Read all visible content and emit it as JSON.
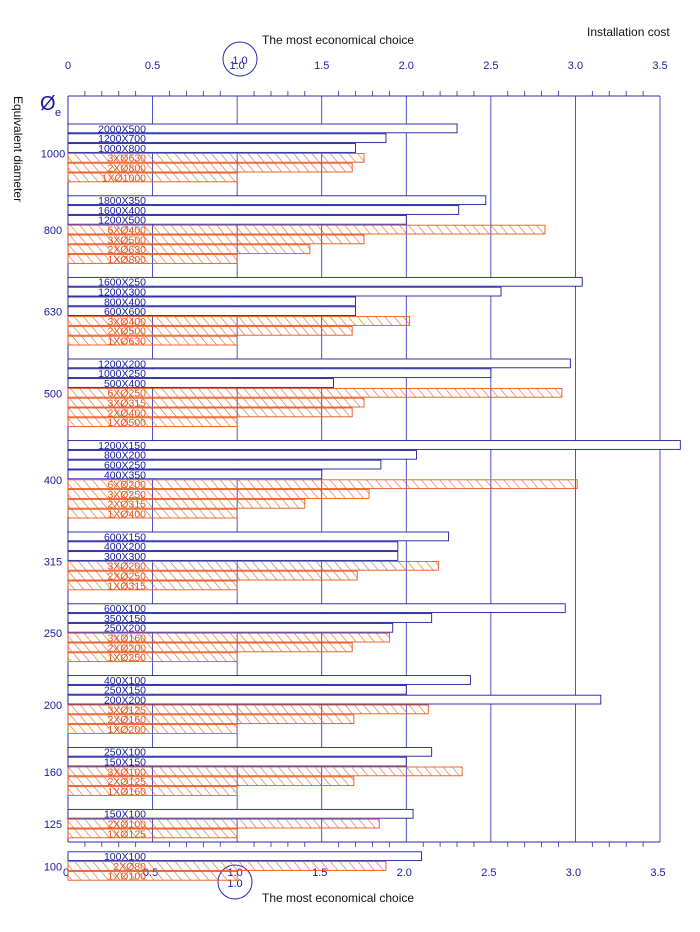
{
  "chart_data": {
    "type": "bar",
    "orientation": "horizontal",
    "title_top": "The most economical choice",
    "title_bottom": "The most economical choice",
    "xlabel": "Installation cost",
    "ylabel": "Equivalent diameter",
    "y_symbol": "Ø",
    "y_symbol_sub": "e",
    "marker_label": "1.0",
    "marker_value": 1.0,
    "xlim": [
      0,
      3.5
    ],
    "x_ticks": [
      "0",
      "0.5",
      "1.0",
      "1.5",
      "2.0",
      "2.5",
      "3.0",
      "3.5"
    ],
    "grid": true,
    "colors": {
      "rectangular": "#1a1aa0",
      "circular": "#e8541a",
      "axis": "#2a2ab0",
      "text": "#111111"
    },
    "series_styles": {
      "rect": "open bar",
      "circ": "hatched bar"
    },
    "groups": [
      {
        "diameter": "1000",
        "bars": [
          {
            "label": "2000X500",
            "value": 2.3,
            "kind": "rect"
          },
          {
            "label": "1200X700",
            "value": 1.88,
            "kind": "rect"
          },
          {
            "label": "1000X800",
            "value": 1.7,
            "kind": "rect"
          },
          {
            "label": "3XØ630",
            "value": 1.75,
            "kind": "circ"
          },
          {
            "label": "2XØ800",
            "value": 1.68,
            "kind": "circ"
          },
          {
            "label": "1XØ1000",
            "value": 1.0,
            "kind": "circ"
          }
        ]
      },
      {
        "diameter": "800",
        "bars": [
          {
            "label": "1800X350",
            "value": 2.47,
            "kind": "rect"
          },
          {
            "label": "1600X400",
            "value": 2.31,
            "kind": "rect"
          },
          {
            "label": "1200X500",
            "value": 2.0,
            "kind": "rect"
          },
          {
            "label": "6XØ400",
            "value": 2.82,
            "kind": "circ"
          },
          {
            "label": "3XØ500",
            "value": 1.75,
            "kind": "circ"
          },
          {
            "label": "2XØ630",
            "value": 1.43,
            "kind": "circ"
          },
          {
            "label": "1XØ800",
            "value": 1.0,
            "kind": "circ"
          }
        ]
      },
      {
        "diameter": "630",
        "bars": [
          {
            "label": "1600X250",
            "value": 3.04,
            "kind": "rect"
          },
          {
            "label": "1200X300",
            "value": 2.56,
            "kind": "rect"
          },
          {
            "label": "800X400",
            "value": 1.7,
            "kind": "rect"
          },
          {
            "label": "600X600",
            "value": 1.7,
            "kind": "rect"
          },
          {
            "label": "3XØ400",
            "value": 2.02,
            "kind": "circ"
          },
          {
            "label": "2XØ500",
            "value": 1.68,
            "kind": "circ"
          },
          {
            "label": "1XØ630",
            "value": 1.0,
            "kind": "circ"
          }
        ]
      },
      {
        "diameter": "500",
        "bars": [
          {
            "label": "1200X200",
            "value": 2.97,
            "kind": "rect"
          },
          {
            "label": "1000X250",
            "value": 2.5,
            "kind": "rect"
          },
          {
            "label": "500X400",
            "value": 1.57,
            "kind": "rect"
          },
          {
            "label": "6XØ250",
            "value": 2.92,
            "kind": "circ"
          },
          {
            "label": "3XØ315",
            "value": 1.75,
            "kind": "circ"
          },
          {
            "label": "2XØ400",
            "value": 1.68,
            "kind": "circ"
          },
          {
            "label": "1XØ500",
            "value": 1.0,
            "kind": "circ"
          }
        ]
      },
      {
        "diameter": "400",
        "bars": [
          {
            "label": "1200X150",
            "value": 3.62,
            "kind": "rect"
          },
          {
            "label": "800X200",
            "value": 2.06,
            "kind": "rect"
          },
          {
            "label": "600X250",
            "value": 1.85,
            "kind": "rect"
          },
          {
            "label": "400X350",
            "value": 1.5,
            "kind": "rect"
          },
          {
            "label": "6XØ200",
            "value": 3.01,
            "kind": "circ"
          },
          {
            "label": "3XØ250",
            "value": 1.78,
            "kind": "circ"
          },
          {
            "label": "2XØ315",
            "value": 1.4,
            "kind": "circ"
          },
          {
            "label": "1XØ400",
            "value": 1.0,
            "kind": "circ"
          }
        ]
      },
      {
        "diameter": "315",
        "bars": [
          {
            "label": "600X150",
            "value": 2.25,
            "kind": "rect"
          },
          {
            "label": "400X200",
            "value": 1.95,
            "kind": "rect"
          },
          {
            "label": "300X300",
            "value": 1.95,
            "kind": "rect"
          },
          {
            "label": "3XØ200",
            "value": 2.19,
            "kind": "circ"
          },
          {
            "label": "2XØ250",
            "value": 1.71,
            "kind": "circ"
          },
          {
            "label": "1XØ315",
            "value": 1.0,
            "kind": "circ"
          }
        ]
      },
      {
        "diameter": "250",
        "bars": [
          {
            "label": "600X100",
            "value": 2.94,
            "kind": "rect"
          },
          {
            "label": "350X150",
            "value": 2.15,
            "kind": "rect"
          },
          {
            "label": "250X200",
            "value": 1.92,
            "kind": "rect"
          },
          {
            "label": "3XØ160",
            "value": 1.9,
            "kind": "circ"
          },
          {
            "label": "2XØ200",
            "value": 1.68,
            "kind": "circ"
          },
          {
            "label": "1XØ250",
            "value": 1.0,
            "kind": "circ"
          }
        ]
      },
      {
        "diameter": "200",
        "bars": [
          {
            "label": "400X100",
            "value": 2.38,
            "kind": "rect"
          },
          {
            "label": "250X150",
            "value": 2.0,
            "kind": "rect"
          },
          {
            "label": "200X200",
            "value": 3.15,
            "kind": "rect"
          },
          {
            "label": "3XØ125",
            "value": 2.13,
            "kind": "circ"
          },
          {
            "label": "2XØ160",
            "value": 1.69,
            "kind": "circ"
          },
          {
            "label": "1XØ200",
            "value": 1.0,
            "kind": "circ"
          }
        ]
      },
      {
        "diameter": "160",
        "bars": [
          {
            "label": "250X100",
            "value": 2.15,
            "kind": "rect"
          },
          {
            "label": "150X150",
            "value": 2.0,
            "kind": "rect"
          },
          {
            "label": "3XØ100",
            "value": 2.33,
            "kind": "circ"
          },
          {
            "label": "2XØ125",
            "value": 1.69,
            "kind": "circ"
          },
          {
            "label": "1XØ160",
            "value": 1.0,
            "kind": "circ"
          }
        ]
      },
      {
        "diameter": "125",
        "bars": [
          {
            "label": "150X100",
            "value": 2.04,
            "kind": "rect"
          },
          {
            "label": "2XØ100",
            "value": 1.84,
            "kind": "circ"
          },
          {
            "label": "1XØ125",
            "value": 1.0,
            "kind": "circ"
          }
        ]
      },
      {
        "diameter": "100",
        "bars": [
          {
            "label": "100X100",
            "value": 2.09,
            "kind": "rect"
          },
          {
            "label": "2XØ80",
            "value": 1.88,
            "kind": "circ"
          },
          {
            "label": "1XØ100",
            "value": 1.0,
            "kind": "circ"
          }
        ]
      }
    ]
  }
}
